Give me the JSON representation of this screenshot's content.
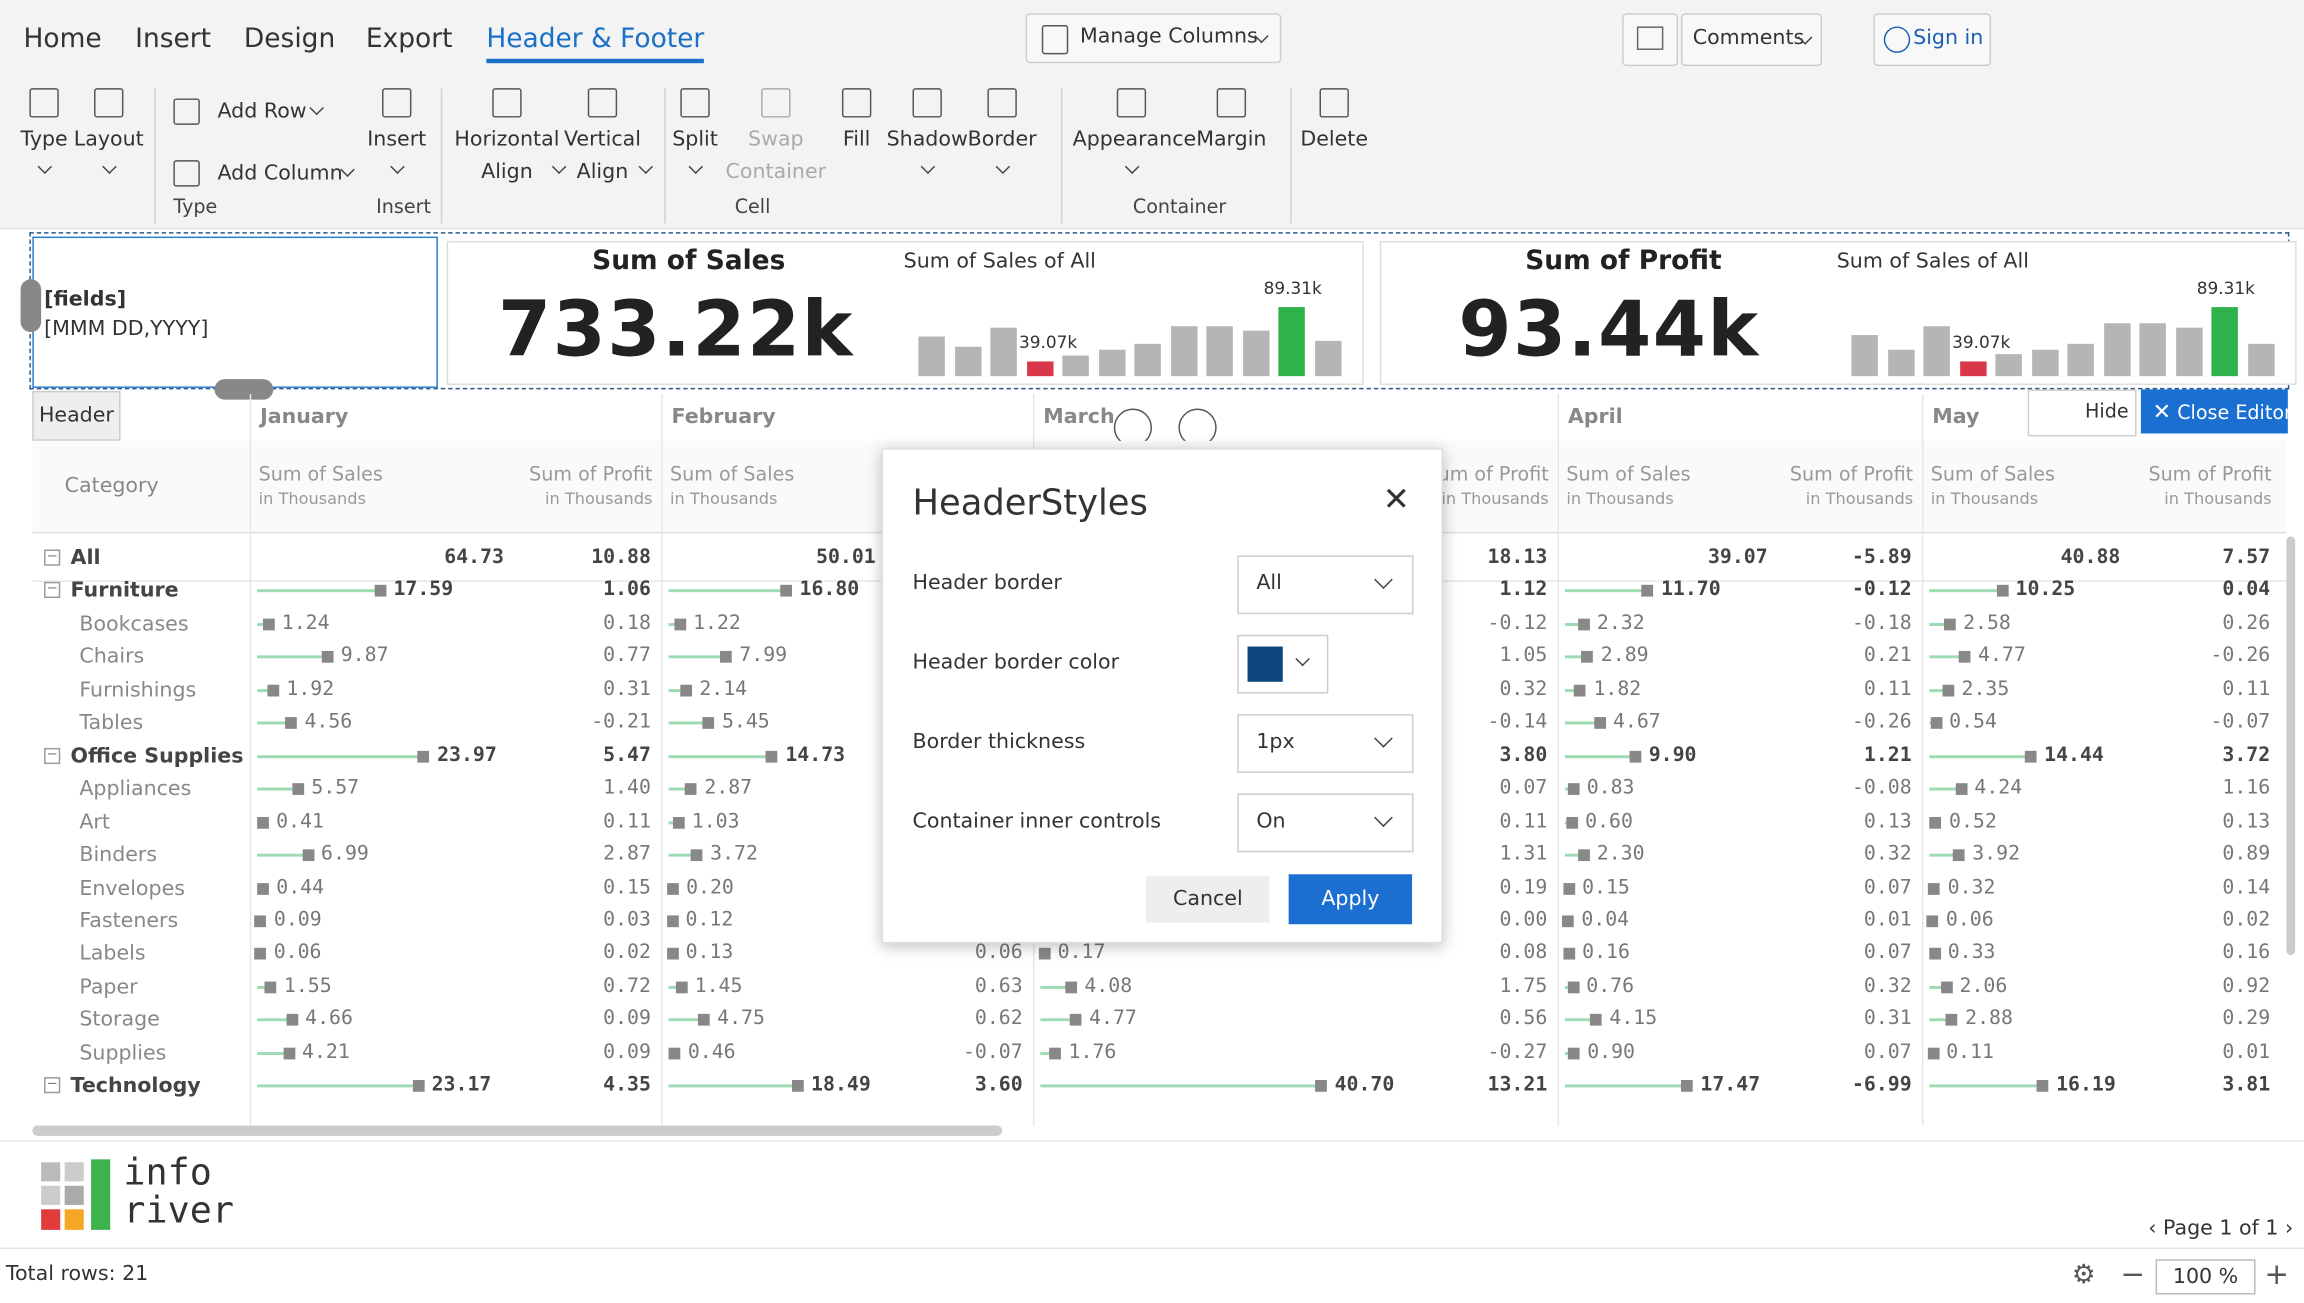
{
  "ribbon": {
    "tabs": [
      "Home",
      "Insert",
      "Design",
      "Export",
      "Header & Footer"
    ],
    "active_tab": 4,
    "manage_columns": "Manage Columns",
    "comments": "Comments",
    "sign_in": "Sign in",
    "buttons": [
      {
        "label": [
          "Type"
        ],
        "dropdown": true
      },
      {
        "label": [
          "Layout"
        ],
        "dropdown": true
      },
      {
        "label": [
          "Insert"
        ],
        "dropdown": true
      },
      {
        "label": [
          "Horizontal",
          "Align"
        ],
        "dropdown": true
      },
      {
        "label": [
          "Vertical",
          "Align"
        ],
        "dropdown": true
      },
      {
        "label": [
          "Split"
        ],
        "dropdown": true
      },
      {
        "label": [
          "Swap",
          "Container"
        ],
        "disabled": true
      },
      {
        "label": [
          "Fill"
        ]
      },
      {
        "label": [
          "Shadow"
        ],
        "dropdown": true
      },
      {
        "label": [
          "Border"
        ],
        "dropdown": true
      },
      {
        "label": [
          "Appearance"
        ],
        "dropdown": true
      },
      {
        "label": [
          "Margin"
        ]
      },
      {
        "label": [
          "Delete"
        ]
      }
    ],
    "add_row": "Add Row",
    "add_column": "Add Column",
    "groups": [
      "Type",
      "Insert",
      "Cell",
      "Container"
    ]
  },
  "header": {
    "fields": "[fields]",
    "date_format": "[MMM DD,YYYY]",
    "cards": [
      {
        "title": "Sum of Sales",
        "value": "733.22k",
        "subtitle": "Sum of Sales of All",
        "bars": [
          62,
          52,
          70,
          39.07,
          45,
          50,
          55,
          72,
          72,
          68,
          89.31,
          58
        ],
        "min_label": "39.07k",
        "max_label": "89.31k"
      },
      {
        "title": "Sum of Profit",
        "value": "93.44k",
        "subtitle": "Sum of Sales of All",
        "bars": [
          63,
          50,
          72,
          39.07,
          46,
          50,
          56,
          74,
          74,
          70,
          89.31,
          56
        ],
        "min_label": "39.07k",
        "max_label": "89.31k"
      }
    ]
  },
  "header_tag": "Header",
  "hide": "Hide",
  "close_editor": "Close Editor",
  "table": {
    "category_header": "Category",
    "months": [
      "January",
      "February",
      "March",
      "April",
      "May"
    ],
    "sales_header": "Sum of Sales",
    "profit_header": "Sum of Profit",
    "unit": "in Thousands",
    "total": {
      "label": "All",
      "cells": [
        "64.73",
        "10.88",
        "50.01",
        null,
        null,
        "18.13",
        "39.07",
        "-5.89",
        "40.88",
        "7.57"
      ]
    },
    "groups": [
      {
        "label": "Furniture",
        "cells": [
          "17.59",
          "1.06",
          "16.80",
          null,
          null,
          "1.12",
          "11.70",
          "-0.12",
          "10.25",
          "0.04"
        ],
        "rows": [
          {
            "label": "Bookcases",
            "cells": [
              "1.24",
              "0.18",
              "1.22",
              null,
              null,
              "-0.12",
              "2.32",
              "-0.18",
              "2.58",
              "0.26"
            ]
          },
          {
            "label": "Chairs",
            "cells": [
              "9.87",
              "0.77",
              "7.99",
              null,
              null,
              "1.05",
              "2.89",
              "0.21",
              "4.77",
              "-0.26"
            ]
          },
          {
            "label": "Furnishings",
            "cells": [
              "1.92",
              "0.31",
              "2.14",
              null,
              null,
              "0.32",
              "1.82",
              "0.11",
              "2.35",
              "0.11"
            ]
          },
          {
            "label": "Tables",
            "cells": [
              "4.56",
              "-0.21",
              "5.45",
              null,
              null,
              "-0.14",
              "4.67",
              "-0.26",
              "0.54",
              "-0.07"
            ]
          }
        ]
      },
      {
        "label": "Office Supplies",
        "cells": [
          "23.97",
          "5.47",
          "14.73",
          null,
          null,
          "3.80",
          "9.90",
          "1.21",
          "14.44",
          "3.72"
        ],
        "rows": [
          {
            "label": "Appliances",
            "cells": [
              "5.57",
              "1.40",
              "2.87",
              null,
              null,
              "0.07",
              "0.83",
              "-0.08",
              "4.24",
              "1.16"
            ]
          },
          {
            "label": "Art",
            "cells": [
              "0.41",
              "0.11",
              "1.03",
              null,
              null,
              "0.11",
              "0.60",
              "0.13",
              "0.52",
              "0.13"
            ]
          },
          {
            "label": "Binders",
            "cells": [
              "6.99",
              "2.87",
              "3.72",
              null,
              null,
              "1.31",
              "2.30",
              "0.32",
              "3.92",
              "0.89"
            ]
          },
          {
            "label": "Envelopes",
            "cells": [
              "0.44",
              "0.15",
              "0.20",
              null,
              null,
              "0.19",
              "0.15",
              "0.07",
              "0.32",
              "0.14"
            ]
          },
          {
            "label": "Fasteners",
            "cells": [
              "0.09",
              "0.03",
              "0.12",
              null,
              null,
              "0.00",
              "0.04",
              "0.01",
              "0.06",
              "0.02"
            ]
          },
          {
            "label": "Labels",
            "cells": [
              "0.06",
              "0.02",
              "0.13",
              "0.06",
              "0.17",
              "0.08",
              "0.16",
              "0.07",
              "0.33",
              "0.16"
            ]
          },
          {
            "label": "Paper",
            "cells": [
              "1.55",
              "0.72",
              "1.45",
              "0.63",
              "4.08",
              "1.75",
              "0.76",
              "0.32",
              "2.06",
              "0.92"
            ]
          },
          {
            "label": "Storage",
            "cells": [
              "4.66",
              "0.09",
              "4.75",
              "0.62",
              "4.77",
              "0.56",
              "4.15",
              "0.31",
              "2.88",
              "0.29"
            ]
          },
          {
            "label": "Supplies",
            "cells": [
              "4.21",
              "0.09",
              "0.46",
              "-0.07",
              "1.76",
              "-0.27",
              "0.90",
              "0.07",
              "0.11",
              "0.01"
            ]
          }
        ]
      },
      {
        "label": "Technology",
        "cells": [
          "23.17",
          "4.35",
          "18.49",
          "3.60",
          "40.70",
          "13.21",
          "17.47",
          "-6.99",
          "16.19",
          "3.81"
        ],
        "rows": []
      }
    ]
  },
  "dialog": {
    "title": "HeaderStyles",
    "fields": [
      {
        "label": "Header border",
        "value": "All"
      },
      {
        "label": "Header border color",
        "color": "#0e477f"
      },
      {
        "label": "Border thickness",
        "value": "1px"
      },
      {
        "label": "Container inner controls",
        "value": "On"
      }
    ],
    "cancel": "Cancel",
    "apply": "Apply"
  },
  "footer": {
    "logo": [
      "info",
      "river"
    ],
    "page": "Page 1 of 1",
    "total_rows": "Total rows: 21",
    "zoom": "100 %"
  }
}
